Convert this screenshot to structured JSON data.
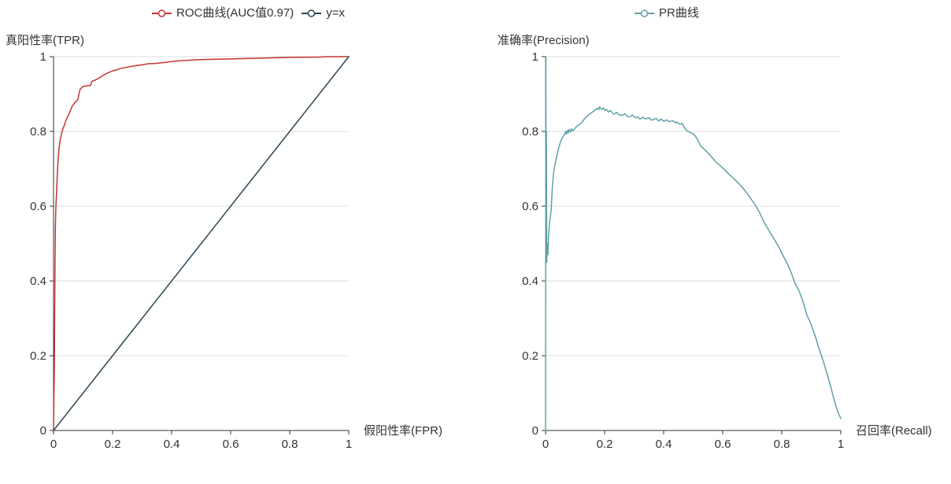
{
  "page": {
    "background": "#ffffff",
    "description_note": "two side-by-side evaluation curves"
  },
  "style": {
    "grid_color": "#dcdcdc",
    "axis_color": "#333333",
    "text_color": "#333333",
    "series_line_width": 1.5
  },
  "chart_data": [
    {
      "id": "roc",
      "type": "line",
      "legend_position": "top-center",
      "grid": "horizontal-only",
      "legend": [
        {
          "label": "ROC曲线(AUC值0.97)",
          "color": "#c23531",
          "marker": "line-with-hollow-circle-icon"
        },
        {
          "label": "y=x",
          "color": "#2f4554",
          "marker": "line-with-hollow-circle-icon"
        }
      ],
      "x_axis": {
        "name": "假阳性率(FPR)",
        "range": [
          0,
          1
        ],
        "ticks": [
          0,
          0.2,
          0.4,
          0.6,
          0.8,
          1
        ],
        "tick_labels": [
          "0",
          "0.2",
          "0.4",
          "0.6",
          "0.8",
          "1"
        ]
      },
      "y_axis": {
        "name": "真阳性率(TPR)",
        "range": [
          0,
          1
        ],
        "ticks": [
          0,
          0.2,
          0.4,
          0.6,
          0.8,
          1
        ],
        "tick_labels": [
          "0",
          "0.2",
          "0.4",
          "0.6",
          "0.8",
          "1"
        ]
      },
      "series": [
        {
          "name": "ROC曲线(AUC值0.97)",
          "color": "#c23531",
          "auc": 0.97,
          "points": [
            [
              0,
              0
            ],
            [
              0.003,
              0.18
            ],
            [
              0.004,
              0.32
            ],
            [
              0.005,
              0.45
            ],
            [
              0.006,
              0.54
            ],
            [
              0.008,
              0.6
            ],
            [
              0.01,
              0.632
            ],
            [
              0.012,
              0.672
            ],
            [
              0.014,
              0.705
            ],
            [
              0.016,
              0.73
            ],
            [
              0.019,
              0.757
            ],
            [
              0.023,
              0.778
            ],
            [
              0.027,
              0.794
            ],
            [
              0.032,
              0.808
            ],
            [
              0.036,
              0.815
            ],
            [
              0.042,
              0.83
            ],
            [
              0.05,
              0.843
            ],
            [
              0.057,
              0.856
            ],
            [
              0.063,
              0.867
            ],
            [
              0.07,
              0.875
            ],
            [
              0.077,
              0.881
            ],
            [
              0.082,
              0.885
            ],
            [
              0.086,
              0.9
            ],
            [
              0.09,
              0.913
            ],
            [
              0.096,
              0.917
            ],
            [
              0.1,
              0.92
            ],
            [
              0.105,
              0.921
            ],
            [
              0.115,
              0.922
            ],
            [
              0.125,
              0.923
            ],
            [
              0.13,
              0.934
            ],
            [
              0.14,
              0.937
            ],
            [
              0.15,
              0.941
            ],
            [
              0.16,
              0.946
            ],
            [
              0.17,
              0.951
            ],
            [
              0.185,
              0.957
            ],
            [
              0.2,
              0.962
            ],
            [
              0.215,
              0.965
            ],
            [
              0.23,
              0.969
            ],
            [
              0.25,
              0.972
            ],
            [
              0.28,
              0.976
            ],
            [
              0.3,
              0.978
            ],
            [
              0.32,
              0.981
            ],
            [
              0.345,
              0.982
            ],
            [
              0.37,
              0.984
            ],
            [
              0.39,
              0.986
            ],
            [
              0.41,
              0.988
            ],
            [
              0.43,
              0.989
            ],
            [
              0.45,
              0.99
            ],
            [
              0.47,
              0.991
            ],
            [
              0.5,
              0.992
            ],
            [
              0.55,
              0.993
            ],
            [
              0.6,
              0.994
            ],
            [
              0.65,
              0.995
            ],
            [
              0.7,
              0.996
            ],
            [
              0.75,
              0.997
            ],
            [
              0.8,
              0.998
            ],
            [
              0.85,
              0.9985
            ],
            [
              0.9,
              0.999
            ],
            [
              0.93,
              1
            ],
            [
              1,
              1
            ]
          ]
        },
        {
          "name": "y=x",
          "color": "#2f4554",
          "points": [
            [
              0,
              0
            ],
            [
              1,
              1
            ]
          ]
        }
      ]
    },
    {
      "id": "pr",
      "type": "line",
      "legend_position": "top-center",
      "grid": "horizontal-only",
      "legend": [
        {
          "label": "PR曲线",
          "color": "#61a0a8",
          "marker": "line-with-hollow-circle-icon"
        }
      ],
      "x_axis": {
        "name": "召回率(Recall)",
        "range": [
          0,
          1
        ],
        "ticks": [
          0,
          0.2,
          0.4,
          0.6,
          0.8,
          1
        ],
        "tick_labels": [
          "0",
          "0.2",
          "0.4",
          "0.6",
          "0.8",
          "1"
        ]
      },
      "y_axis": {
        "name": "准确率(Precision)",
        "range": [
          0,
          1
        ],
        "ticks": [
          0,
          0.2,
          0.4,
          0.6,
          0.8,
          1
        ],
        "tick_labels": [
          "0",
          "0.2",
          "0.4",
          "0.6",
          "0.8",
          "1"
        ]
      },
      "series": [
        {
          "name": "PR曲线",
          "color": "#61a0a8",
          "points": [
            [
              0,
              0
            ],
            [
              0.001,
              1
            ],
            [
              0.002,
              0.45
            ],
            [
              0.003,
              0.8
            ],
            [
              0.004,
              0.45
            ],
            [
              0.006,
              0.5
            ],
            [
              0.008,
              0.47
            ],
            [
              0.01,
              0.52
            ],
            [
              0.012,
              0.54
            ],
            [
              0.014,
              0.56
            ],
            [
              0.017,
              0.575
            ],
            [
              0.019,
              0.59
            ],
            [
              0.021,
              0.62
            ],
            [
              0.023,
              0.65
            ],
            [
              0.025,
              0.67
            ],
            [
              0.027,
              0.688
            ],
            [
              0.03,
              0.705
            ],
            [
              0.034,
              0.72
            ],
            [
              0.037,
              0.731
            ],
            [
              0.041,
              0.745
            ],
            [
              0.045,
              0.758
            ],
            [
              0.05,
              0.77
            ],
            [
              0.054,
              0.779
            ],
            [
              0.06,
              0.787
            ],
            [
              0.065,
              0.793
            ],
            [
              0.068,
              0.8
            ],
            [
              0.071,
              0.793
            ],
            [
              0.074,
              0.803
            ],
            [
              0.077,
              0.796
            ],
            [
              0.08,
              0.805
            ],
            [
              0.084,
              0.798
            ],
            [
              0.088,
              0.807
            ],
            [
              0.093,
              0.802
            ],
            [
              0.099,
              0.808
            ],
            [
              0.107,
              0.815
            ],
            [
              0.114,
              0.818
            ],
            [
              0.121,
              0.822
            ],
            [
              0.13,
              0.832
            ],
            [
              0.143,
              0.843
            ],
            [
              0.152,
              0.848
            ],
            [
              0.161,
              0.853
            ],
            [
              0.168,
              0.857
            ],
            [
              0.175,
              0.862
            ],
            [
              0.18,
              0.858
            ],
            [
              0.183,
              0.866
            ],
            [
              0.187,
              0.861
            ],
            [
              0.191,
              0.859
            ],
            [
              0.196,
              0.863
            ],
            [
              0.201,
              0.856
            ],
            [
              0.207,
              0.859
            ],
            [
              0.213,
              0.852
            ],
            [
              0.22,
              0.856
            ],
            [
              0.227,
              0.849
            ],
            [
              0.232,
              0.846
            ],
            [
              0.24,
              0.851
            ],
            [
              0.248,
              0.845
            ],
            [
              0.259,
              0.843
            ],
            [
              0.268,
              0.847
            ],
            [
              0.277,
              0.84
            ],
            [
              0.285,
              0.839
            ],
            [
              0.295,
              0.844
            ],
            [
              0.305,
              0.836
            ],
            [
              0.312,
              0.839
            ],
            [
              0.32,
              0.833
            ],
            [
              0.33,
              0.838
            ],
            [
              0.339,
              0.833
            ],
            [
              0.35,
              0.837
            ],
            [
              0.358,
              0.83
            ],
            [
              0.365,
              0.832
            ],
            [
              0.375,
              0.835
            ],
            [
              0.383,
              0.828
            ],
            [
              0.392,
              0.833
            ],
            [
              0.4,
              0.827
            ],
            [
              0.41,
              0.831
            ],
            [
              0.419,
              0.826
            ],
            [
              0.43,
              0.829
            ],
            [
              0.44,
              0.823
            ],
            [
              0.445,
              0.825
            ],
            [
              0.455,
              0.819
            ],
            [
              0.463,
              0.822
            ],
            [
              0.468,
              0.813
            ],
            [
              0.472,
              0.808
            ],
            [
              0.477,
              0.803
            ],
            [
              0.481,
              0.801
            ],
            [
              0.49,
              0.797
            ],
            [
              0.499,
              0.794
            ],
            [
              0.508,
              0.787
            ],
            [
              0.517,
              0.775
            ],
            [
              0.525,
              0.762
            ],
            [
              0.534,
              0.755
            ],
            [
              0.543,
              0.748
            ],
            [
              0.552,
              0.741
            ],
            [
              0.565,
              0.729
            ],
            [
              0.579,
              0.717
            ],
            [
              0.592,
              0.708
            ],
            [
              0.605,
              0.699
            ],
            [
              0.618,
              0.688
            ],
            [
              0.632,
              0.678
            ],
            [
              0.645,
              0.668
            ],
            [
              0.659,
              0.657
            ],
            [
              0.672,
              0.645
            ],
            [
              0.685,
              0.632
            ],
            [
              0.698,
              0.617
            ],
            [
              0.712,
              0.601
            ],
            [
              0.725,
              0.583
            ],
            [
              0.739,
              0.559
            ],
            [
              0.752,
              0.541
            ],
            [
              0.765,
              0.524
            ],
            [
              0.779,
              0.506
            ],
            [
              0.792,
              0.488
            ],
            [
              0.805,
              0.467
            ],
            [
              0.819,
              0.446
            ],
            [
              0.832,
              0.422
            ],
            [
              0.845,
              0.394
            ],
            [
              0.859,
              0.373
            ],
            [
              0.872,
              0.345
            ],
            [
              0.885,
              0.309
            ],
            [
              0.899,
              0.285
            ],
            [
              0.907,
              0.267
            ],
            [
              0.916,
              0.246
            ],
            [
              0.925,
              0.222
            ],
            [
              0.939,
              0.19
            ],
            [
              0.948,
              0.166
            ],
            [
              0.956,
              0.145
            ],
            [
              0.965,
              0.12
            ],
            [
              0.974,
              0.092
            ],
            [
              0.983,
              0.067
            ],
            [
              0.992,
              0.046
            ],
            [
              1,
              0.032
            ]
          ]
        }
      ]
    }
  ]
}
